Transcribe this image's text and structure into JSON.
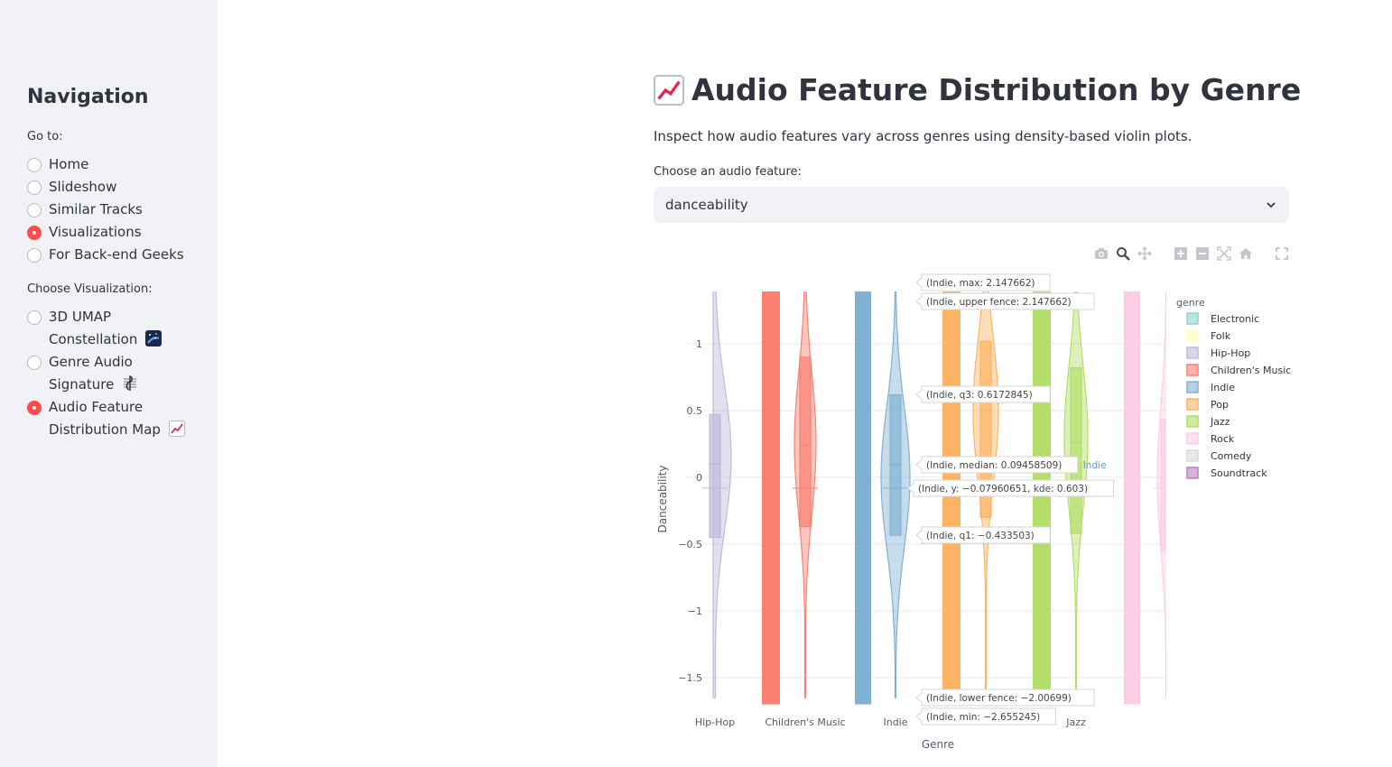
{
  "sidebar": {
    "title": "Navigation",
    "goto_label": "Go to:",
    "pages": [
      "Home",
      "Slideshow",
      "Similar Tracks",
      "Visualizations",
      "For Back-end Geeks"
    ],
    "selected_page": "Visualizations",
    "viz_label": "Choose Visualization:",
    "viz_options": [
      {
        "line1": "3D UMAP",
        "line2": "Constellation",
        "icon": "night-sky-emoji-icon"
      },
      {
        "line1": "Genre Audio",
        "line2": "Signature",
        "icon": "musical-score-emoji-icon"
      },
      {
        "line1": "Audio Feature",
        "line2": "Distribution Map",
        "icon": "chart-increasing-emoji-icon"
      }
    ],
    "selected_viz": "Audio Feature Distribution Map"
  },
  "main": {
    "title": "Audio Feature Distribution by Genre",
    "title_icon": "chart-increasing-emoji-icon",
    "subtitle": "Inspect how audio features vary across genres using density-based violin plots.",
    "select_label": "Choose an audio feature:",
    "select_value": "danceability"
  },
  "modebar": [
    "camera-icon",
    "zoom-icon",
    "pan-icon",
    "zoom-in-icon",
    "zoom-out-icon",
    "autoscale-icon",
    "reset-axes-icon",
    "fullscreen-icon"
  ],
  "chart_data": {
    "type": "violin",
    "xlabel": "Genre",
    "ylabel": "Danceability",
    "ylim": [
      -1.7,
      1.4
    ],
    "yticks": [
      1,
      0.5,
      0,
      -0.5,
      -1,
      -1.5
    ],
    "ytick_labels": [
      "1",
      "0.5",
      "0",
      "−0.5",
      "−1",
      "−1.5"
    ],
    "x_tick_labels": [
      "Hip-Hop",
      "Children's Music",
      "Indie",
      "Jazz"
    ],
    "legend_title": "genre",
    "legend_position": "right",
    "legend": [
      {
        "name": "Electronic",
        "color": "#8dd3c7"
      },
      {
        "name": "Folk",
        "color": "#ffffb3"
      },
      {
        "name": "Hip-Hop",
        "color": "#bebada"
      },
      {
        "name": "Children's Music",
        "color": "#fb8072"
      },
      {
        "name": "Indie",
        "color": "#80b1d3"
      },
      {
        "name": "Pop",
        "color": "#fdb462"
      },
      {
        "name": "Jazz",
        "color": "#b3de69"
      },
      {
        "name": "Rock",
        "color": "#fccde5"
      },
      {
        "name": "Comedy",
        "color": "#d9d9d9"
      },
      {
        "name": "Soundtrack",
        "color": "#bc80bd"
      }
    ],
    "series": [
      {
        "name": "Hip-Hop",
        "position": 0,
        "q1": -0.45,
        "median": 0.1,
        "q3": 0.47,
        "min": -1.7,
        "max": 1.4
      },
      {
        "name": "Children's Music",
        "position": 1,
        "q1": -0.37,
        "median": 0.24,
        "q3": 0.9,
        "min": -1.7,
        "max": 1.4
      },
      {
        "name": "Indie",
        "position": 2,
        "q1": -0.433503,
        "median": 0.09458509,
        "q3": 0.6172845,
        "min": -2.655245,
        "max": 2.147662
      },
      {
        "name": "Pop",
        "position": 3,
        "q1": -0.3,
        "median": 0.5,
        "q3": 1.02,
        "min": -1.7,
        "max": 1.4
      },
      {
        "name": "Jazz",
        "position": 4,
        "q1": -0.42,
        "median": 0.26,
        "q3": 0.82,
        "min": -1.7,
        "max": 1.4
      },
      {
        "name": "Rock",
        "position": 5,
        "q1": -0.55,
        "median": 0.0,
        "q3": 0.43,
        "min": -1.7,
        "max": 1.4
      }
    ],
    "hover": {
      "name": "Indie",
      "lines": [
        "(Indie, max: 2.147662)",
        "(Indie, upper fence: 2.147662)",
        "(Indie, q3: 0.6172845)",
        "(Indie, median: 0.09458509)",
        "(Indie, y: −0.07960651, kde: 0.603)",
        "(Indie, q1: −0.433503)",
        "(Indie, lower fence: −2.00699)",
        "(Indie, min: −2.655245)"
      ]
    }
  }
}
